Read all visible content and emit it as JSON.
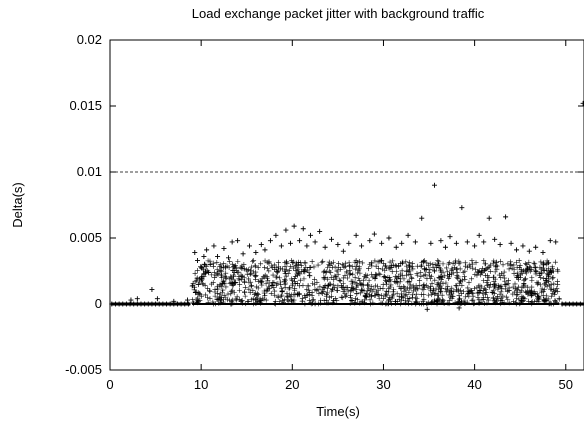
{
  "chart_data": {
    "type": "scatter",
    "title": "Load exchange packet jitter with background traffic",
    "xlabel": "Time(s)",
    "ylabel": "Delta(s)",
    "xlim": [
      0,
      52
    ],
    "ylim": [
      -0.005,
      0.02
    ],
    "xticks": [
      0,
      10,
      20,
      30,
      40,
      50
    ],
    "xtick_labels": [
      "0",
      "10",
      "20",
      "30",
      "40",
      "50"
    ],
    "yticks": [
      -0.005,
      0,
      0.005,
      0.01,
      0.015,
      0.02
    ],
    "ytick_labels": [
      "-0.005",
      "0",
      "0.005",
      "0.01",
      "0.015",
      "0.02"
    ],
    "reference_line": {
      "y": 0.01,
      "style": "dashed"
    },
    "grid": false,
    "marker": "+",
    "series": [
      {
        "points": [
          [
            0.2,
            0
          ],
          [
            0.6,
            0
          ],
          [
            1.0,
            0
          ],
          [
            1.4,
            0
          ],
          [
            1.8,
            0
          ],
          [
            2.2,
            0
          ],
          [
            2.6,
            0
          ],
          [
            3.0,
            0
          ],
          [
            3.4,
            0
          ],
          [
            3.8,
            0
          ],
          [
            4.2,
            0
          ],
          [
            4.6,
            0
          ],
          [
            5.0,
            0
          ],
          [
            5.4,
            0
          ],
          [
            5.8,
            0
          ],
          [
            6.2,
            0
          ],
          [
            6.6,
            0
          ],
          [
            7.0,
            0
          ],
          [
            7.4,
            0
          ],
          [
            7.8,
            0
          ],
          [
            8.2,
            0
          ],
          [
            8.6,
            0
          ],
          [
            2.3,
            0.0003
          ],
          [
            3.0,
            0.0004
          ],
          [
            4.6,
            0.0011
          ],
          [
            5.2,
            0.0004
          ],
          [
            7.0,
            0.0002
          ],
          [
            8.5,
            0.0003
          ],
          [
            9.3,
            0.0039
          ],
          [
            9.6,
            0.0033
          ],
          [
            10.0,
            0.0028
          ],
          [
            10.3,
            0.0036
          ],
          [
            10.6,
            0.0041
          ],
          [
            11.0,
            0.003
          ],
          [
            11.4,
            0.0044
          ],
          [
            11.8,
            0.0036
          ],
          [
            12.5,
            0.0042
          ],
          [
            13.0,
            0.0035
          ],
          [
            13.4,
            0.0047
          ],
          [
            14.0,
            0.0048
          ],
          [
            14.6,
            0.0038
          ],
          [
            15.3,
            0.0044
          ],
          [
            16.0,
            0.0039
          ],
          [
            16.6,
            0.0045
          ],
          [
            17.0,
            0.0041
          ],
          [
            17.6,
            0.0048
          ],
          [
            18.2,
            0.0052
          ],
          [
            18.8,
            0.0044
          ],
          [
            19.3,
            0.0056
          ],
          [
            19.8,
            0.0046
          ],
          [
            20.2,
            0.0059
          ],
          [
            20.8,
            0.0048
          ],
          [
            21.2,
            0.0057
          ],
          [
            21.6,
            0.0044
          ],
          [
            22.0,
            0.0052
          ],
          [
            22.5,
            0.0047
          ],
          [
            23.0,
            0.0055
          ],
          [
            23.6,
            0.0043
          ],
          [
            24.3,
            0.0049
          ],
          [
            25.0,
            0.0045
          ],
          [
            25.6,
            0.004
          ],
          [
            26.2,
            0.0046
          ],
          [
            27.0,
            0.0052
          ],
          [
            27.6,
            0.0044
          ],
          [
            28.5,
            0.0048
          ],
          [
            29.0,
            0.0053
          ],
          [
            29.8,
            0.0046
          ],
          [
            30.6,
            0.005
          ],
          [
            31.4,
            0.0043
          ],
          [
            32.0,
            0.0046
          ],
          [
            32.7,
            0.0052
          ],
          [
            33.5,
            0.0047
          ],
          [
            34.2,
            0.0065
          ],
          [
            35.2,
            0.0046
          ],
          [
            35.6,
            0.009
          ],
          [
            36.3,
            0.0048
          ],
          [
            36.8,
            0.0043
          ],
          [
            37.3,
            0.0051
          ],
          [
            38.0,
            0.0046
          ],
          [
            38.6,
            0.0073
          ],
          [
            39.2,
            0.0047
          ],
          [
            40.0,
            0.0044
          ],
          [
            40.5,
            0.0052
          ],
          [
            41.0,
            0.0047
          ],
          [
            41.6,
            0.0065
          ],
          [
            42.2,
            0.0049
          ],
          [
            42.8,
            0.0045
          ],
          [
            43.4,
            0.0066
          ],
          [
            44.0,
            0.0046
          ],
          [
            44.6,
            0.0041
          ],
          [
            45.3,
            0.0044
          ],
          [
            46.0,
            0.004
          ],
          [
            46.7,
            0.0043
          ],
          [
            47.5,
            0.0039
          ],
          [
            48.3,
            0.0048
          ],
          [
            48.9,
            0.0047
          ],
          [
            34.8,
            -0.0004
          ],
          [
            38.3,
            -0.0003
          ],
          [
            49.6,
            0
          ],
          [
            50.0,
            0
          ],
          [
            50.4,
            0
          ],
          [
            50.8,
            0
          ],
          [
            51.2,
            0
          ],
          [
            51.6,
            0
          ],
          [
            51.9,
            0.0152
          ]
        ]
      }
    ]
  }
}
